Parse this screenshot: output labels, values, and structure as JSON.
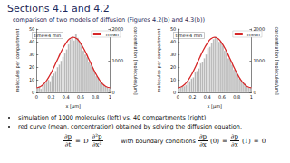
{
  "slide": {
    "title": "Sections 4.1 and 4.2",
    "subtitle": "comparison of two models of diffusion (Figures 4.2(b) and 4.3(b))",
    "bullets": [
      "simulation of 1000 molecules (left) vs. 40 compartments (right)",
      "red curve (mean, concentration) obtained by solving the diffusion equation."
    ],
    "equation": {
      "lhs": {
        "num": "∂p",
        "den": "∂t"
      },
      "equals": "=",
      "coef": "D",
      "rhs": {
        "num": "∂²p",
        "den": "∂x²"
      },
      "bc_text": "with boundary conditions",
      "bc": [
        {
          "num": "∂p",
          "den": "∂x",
          "arg": "(0)"
        },
        {
          "num": "∂p",
          "den": "∂x",
          "arg": "(1)"
        }
      ],
      "bc_rhs": "0"
    }
  },
  "chart_data": [
    {
      "type": "histogram",
      "annotation": "time=4 min",
      "xlabel": "x [µm]",
      "ylabel": "molecules per compartment",
      "y2label": "concentration [molecules/µm]",
      "bins": [
        0,
        0.025,
        0.05,
        0.075,
        0.1,
        0.125,
        0.15,
        0.175,
        0.2,
        0.225,
        0.25,
        0.275,
        0.3,
        0.325,
        0.35,
        0.375,
        0.4,
        0.425,
        0.45,
        0.475,
        0.5,
        0.525,
        0.55,
        0.575,
        0.6,
        0.625,
        0.65,
        0.675,
        0.7,
        0.725,
        0.75,
        0.775,
        0.8,
        0.825,
        0.85,
        0.875,
        0.9,
        0.925,
        0.95,
        0.975,
        1
      ],
      "values": [
        4,
        5,
        3,
        6,
        7,
        8,
        10,
        9,
        13,
        15,
        17,
        20,
        22,
        25,
        28,
        31,
        34,
        38,
        42,
        44,
        41,
        46,
        43,
        39,
        38,
        33,
        30,
        28,
        24,
        22,
        19,
        17,
        13,
        12,
        9,
        8,
        6,
        5,
        4,
        3
      ],
      "color": "#b5b5b5",
      "xlim": [
        0,
        1
      ],
      "xticks": [
        0,
        0.2,
        0.4,
        0.6,
        0.8,
        1
      ],
      "ylim": [
        0,
        50
      ],
      "yticks": [
        0,
        10,
        20,
        30,
        40,
        50
      ],
      "y2lim": [
        0,
        2000
      ],
      "y2ticks": [
        0,
        1000,
        2000
      ],
      "legend": "upper right",
      "series": [
        {
          "name": "mean",
          "type": "line",
          "color": "#d62728",
          "axis": "y2",
          "x": [
            0,
            0.05,
            0.1,
            0.15,
            0.2,
            0.25,
            0.3,
            0.35,
            0.4,
            0.45,
            0.5,
            0.55,
            0.6,
            0.65,
            0.7,
            0.75,
            0.8,
            0.85,
            0.9,
            0.95,
            1
          ],
          "values": [
            150,
            180,
            270,
            420,
            620,
            860,
            1110,
            1350,
            1550,
            1690,
            1740,
            1690,
            1550,
            1350,
            1110,
            860,
            620,
            420,
            270,
            180,
            150
          ]
        }
      ]
    },
    {
      "type": "histogram",
      "annotation": "time=4 min",
      "xlabel": "x [µm]",
      "ylabel": "molecules per compartment",
      "y2label": "concentration [molecules/µm]",
      "bins": [
        0,
        0.025,
        0.05,
        0.075,
        0.1,
        0.125,
        0.15,
        0.175,
        0.2,
        0.225,
        0.25,
        0.275,
        0.3,
        0.325,
        0.35,
        0.375,
        0.4,
        0.425,
        0.45,
        0.475,
        0.5,
        0.525,
        0.55,
        0.575,
        0.6,
        0.625,
        0.65,
        0.675,
        0.7,
        0.725,
        0.75,
        0.775,
        0.8,
        0.825,
        0.85,
        0.875,
        0.9,
        0.925,
        0.95,
        0.975,
        1
      ],
      "values": [
        3,
        4,
        5,
        5,
        6,
        9,
        9,
        11,
        12,
        16,
        17,
        19,
        23,
        24,
        27,
        30,
        35,
        36,
        39,
        42,
        44,
        42,
        40,
        40,
        37,
        33,
        32,
        27,
        26,
        22,
        18,
        17,
        14,
        11,
        10,
        8,
        7,
        5,
        4,
        4
      ],
      "color": "#b5b5b5",
      "xlim": [
        0,
        1
      ],
      "xticks": [
        0,
        0.2,
        0.4,
        0.6,
        0.8,
        1
      ],
      "ylim": [
        0,
        50
      ],
      "yticks": [
        0,
        10,
        20,
        30,
        40,
        50
      ],
      "y2lim": [
        0,
        2000
      ],
      "y2ticks": [
        0,
        1000,
        2000
      ],
      "legend": "upper right",
      "series": [
        {
          "name": "mean",
          "type": "line",
          "color": "#d62728",
          "axis": "y2",
          "x": [
            0,
            0.05,
            0.1,
            0.15,
            0.2,
            0.25,
            0.3,
            0.35,
            0.4,
            0.45,
            0.5,
            0.55,
            0.6,
            0.65,
            0.7,
            0.75,
            0.8,
            0.85,
            0.9,
            0.95,
            1
          ],
          "values": [
            150,
            180,
            270,
            420,
            620,
            860,
            1110,
            1350,
            1550,
            1690,
            1740,
            1690,
            1550,
            1350,
            1110,
            860,
            620,
            420,
            270,
            180,
            150
          ]
        }
      ]
    }
  ]
}
